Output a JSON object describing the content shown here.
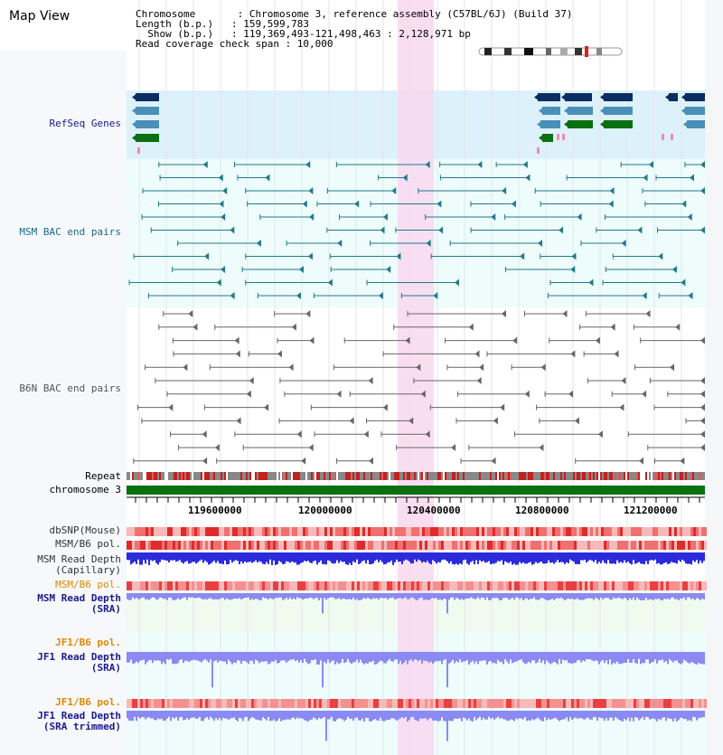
{
  "title": "Map View",
  "header": {
    "chromosome_line": "Chromosome       : Chromosome 3, reference assembly (C57BL/6J) (Build 37)",
    "length_line": "Length (b.p.)   : 159,599,783",
    "show_line": "  Show (b.p.)   : 119,369,493-121,498,463 : 2,128,971 bp",
    "coverage_line": "Read coverage check span : 10,000"
  },
  "tracks": {
    "refseq": "RefSeq Genes",
    "msm_bac": "MSM BAC end pairs",
    "b6n_bac": "B6N BAC end pairs",
    "repeat": "Repeat",
    "chromosome": "chromosome 3",
    "dbsnp": "dbSNP(Mouse)",
    "msm_b6_pol": "MSM/B6 pol.",
    "msm_depth_cap_1": "MSM Read Depth",
    "msm_depth_cap_2": "(Capillary)",
    "msm_b6_pol_2": "MSM/B6 pol.",
    "msm_depth_sra_1": "MSM Read Depth",
    "msm_depth_sra_2": "(SRA)",
    "jf1_b6_pol": "JF1/B6 pol.",
    "jf1_depth_sra_1": "JF1 Read Depth",
    "jf1_depth_sra_2": "(SRA)",
    "jf1_b6_pol_2": "JF1/B6 pol.",
    "jf1_depth_trim_1": "JF1 Read Depth",
    "jf1_depth_trim_2": "(SRA trimmed)"
  },
  "ruler": [
    "119600000",
    "120000000",
    "120400000",
    "120800000",
    "121200000"
  ],
  "colors": {
    "refseq_bg": "#ddf1fb",
    "msm_bg": "#eefcfc",
    "highlight": "#f8d8f0",
    "gene_navy": "#0b2d62",
    "gene_steel": "#4a8fb8",
    "gene_green": "#0a7010",
    "bac_msm": "#1f7a8c",
    "bac_b6n": "#666666",
    "depth_blue": "#2b2bdc",
    "depth_lavender": "#8a8af2",
    "label_navy": "#1a1a8c",
    "label_teal": "#1a6a8a",
    "label_orange": "#e08800"
  }
}
